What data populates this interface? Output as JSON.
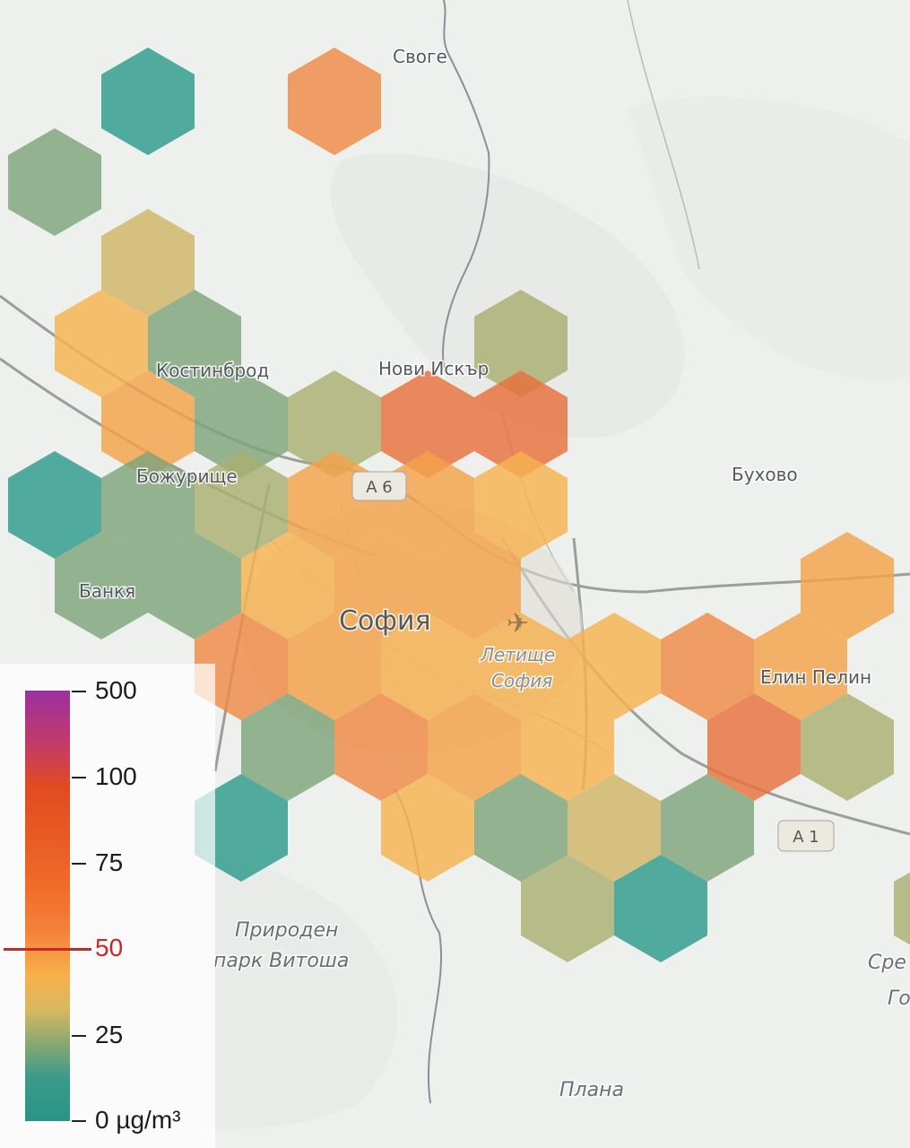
{
  "places": [
    {
      "id": "svoge",
      "name": "Своге",
      "cls": "town"
    },
    {
      "id": "kostinbrod",
      "name": "Костинброд",
      "cls": "town"
    },
    {
      "id": "novi-iskar",
      "name": "Нови Искър",
      "cls": "town"
    },
    {
      "id": "bozhurishte",
      "name": "Божурище",
      "cls": "town"
    },
    {
      "id": "buhovo",
      "name": "Бухово",
      "cls": "town"
    },
    {
      "id": "bankya",
      "name": "Банкя",
      "cls": "town"
    },
    {
      "id": "sofia",
      "name": "София",
      "cls": "city"
    },
    {
      "id": "airport-1",
      "name": "Летище",
      "cls": "italic-sm"
    },
    {
      "id": "airport-2",
      "name": "София",
      "cls": "italic-sm"
    },
    {
      "id": "elin-pelin",
      "name": "Елин Пелин",
      "cls": "town"
    },
    {
      "id": "vitosha-1",
      "name": "Природен",
      "cls": "italic"
    },
    {
      "id": "vitosha-2",
      "name": "парк Витоша",
      "cls": "italic"
    },
    {
      "id": "plana",
      "name": "Плана",
      "cls": "italic"
    },
    {
      "id": "sred-1",
      "name": "Сре",
      "cls": "italic"
    },
    {
      "id": "sred-2",
      "name": "Го",
      "cls": "italic"
    }
  ],
  "road_shields": [
    {
      "id": "a6",
      "label": "A 6"
    },
    {
      "id": "a1",
      "label": "A 1"
    }
  ],
  "colors": {
    "teal": "#2e9a8c",
    "sage": "#7fa47a",
    "olive": "#a9ae70",
    "khaki": "#cfb468",
    "yellow": "#f5b24f",
    "light_orange": "#f4a24a",
    "orange": "#ef8a45",
    "red_orange": "#e8703c"
  },
  "hexes": [
    {
      "q": 0,
      "r": 0,
      "level": "sage"
    },
    {
      "q": 1,
      "r": -1,
      "level": "teal"
    },
    {
      "q": 3,
      "r": -1,
      "level": "orange"
    },
    {
      "q": 1,
      "r": 1,
      "level": "khaki"
    },
    {
      "q": 0.5,
      "r": 2,
      "level": "yellow"
    },
    {
      "q": 1.5,
      "r": 2,
      "level": "sage"
    },
    {
      "q": 5,
      "r": 2,
      "level": "olive"
    },
    {
      "q": 1,
      "r": 3,
      "level": "light_orange"
    },
    {
      "q": 2,
      "r": 3,
      "level": "sage"
    },
    {
      "q": 3,
      "r": 3,
      "level": "olive"
    },
    {
      "q": 4,
      "r": 3,
      "level": "red_orange"
    },
    {
      "q": 5,
      "r": 3,
      "level": "red_orange"
    },
    {
      "q": 0,
      "r": 4,
      "level": "teal"
    },
    {
      "q": 1,
      "r": 4,
      "level": "sage"
    },
    {
      "q": 2,
      "r": 4,
      "level": "olive"
    },
    {
      "q": 3,
      "r": 4,
      "level": "light_orange"
    },
    {
      "q": 4,
      "r": 4,
      "level": "light_orange"
    },
    {
      "q": 5,
      "r": 4,
      "level": "yellow"
    },
    {
      "q": 0.5,
      "r": 5,
      "level": "sage"
    },
    {
      "q": 1.5,
      "r": 5,
      "level": "sage"
    },
    {
      "q": 2.5,
      "r": 5,
      "level": "yellow"
    },
    {
      "q": 3.5,
      "r": 5,
      "level": "light_orange"
    },
    {
      "q": 4.5,
      "r": 5,
      "level": "light_orange"
    },
    {
      "q": 8.5,
      "r": 5,
      "level": "light_orange"
    },
    {
      "q": 2,
      "r": 6,
      "level": "orange"
    },
    {
      "q": 3,
      "r": 6,
      "level": "light_orange"
    },
    {
      "q": 4,
      "r": 6,
      "level": "yellow"
    },
    {
      "q": 5,
      "r": 6,
      "level": "yellow"
    },
    {
      "q": 6,
      "r": 6,
      "level": "yellow"
    },
    {
      "q": 7,
      "r": 6,
      "level": "orange"
    },
    {
      "q": 8,
      "r": 6,
      "level": "light_orange"
    },
    {
      "q": 2.5,
      "r": 7,
      "level": "sage"
    },
    {
      "q": 3.5,
      "r": 7,
      "level": "orange"
    },
    {
      "q": 4.5,
      "r": 7,
      "level": "light_orange"
    },
    {
      "q": 5.5,
      "r": 7,
      "level": "yellow"
    },
    {
      "q": 7.5,
      "r": 7,
      "level": "red_orange"
    },
    {
      "q": 8.5,
      "r": 7,
      "level": "olive"
    },
    {
      "q": 4,
      "r": 8,
      "level": "yellow"
    },
    {
      "q": 5,
      "r": 8,
      "level": "sage"
    },
    {
      "q": 6,
      "r": 8,
      "level": "khaki"
    },
    {
      "q": 7,
      "r": 8,
      "level": "sage"
    },
    {
      "q": 5.5,
      "r": 9,
      "level": "olive"
    },
    {
      "q": 6.5,
      "r": 9,
      "level": "teal"
    },
    {
      "q": 2,
      "r": 8,
      "level": "teal"
    },
    {
      "q": 9.5,
      "r": 9,
      "level": "olive"
    }
  ],
  "legend": {
    "unit": "µg/m³",
    "ticks": [
      {
        "value": "500",
        "label": "500"
      },
      {
        "value": "100",
        "label": "100"
      },
      {
        "value": "75",
        "label": "75"
      },
      {
        "value": "50",
        "label": "50"
      },
      {
        "value": "25",
        "label": "25"
      },
      {
        "value": "0",
        "label": "0 µg/m³"
      }
    ],
    "threshold_value": 50
  }
}
